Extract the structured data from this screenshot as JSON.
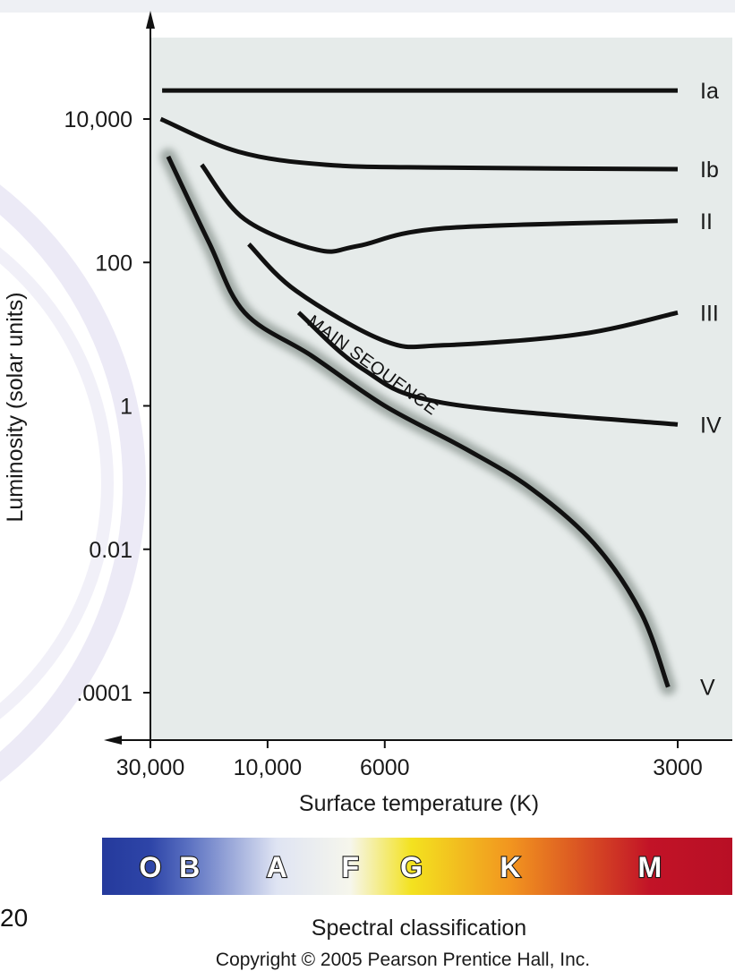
{
  "chart_data": {
    "type": "line",
    "title": "",
    "xlabel": "Surface temperature (K)",
    "ylabel": "Luminosity (solar units)",
    "x_scale": "reciprocal",
    "y_scale": "log",
    "x_direction": "decreasing",
    "xlim": [
      40000,
      2750
    ],
    "ylim": [
      5e-05,
      100000
    ],
    "x_ticks": [
      {
        "value": 30000,
        "label": "30,000"
      },
      {
        "value": 10000,
        "label": "10,000"
      },
      {
        "value": 6000,
        "label": "6000"
      },
      {
        "value": 3000,
        "label": "3000"
      }
    ],
    "y_ticks": [
      {
        "value": 10000,
        "label": "10,000"
      },
      {
        "value": 100,
        "label": "100"
      },
      {
        "value": 1,
        "label": "1"
      },
      {
        "value": 0.01,
        "label": "0.01"
      },
      {
        "value": 0.0001,
        "label": ".0001"
      }
    ],
    "grid": false,
    "legend": "none",
    "series": [
      {
        "name": "Ia",
        "x": [
          25000,
          3000
        ],
        "y": [
          25000,
          25000
        ]
      },
      {
        "name": "Ib",
        "x": [
          25500,
          12000,
          7500,
          5000,
          3000
        ],
        "y": [
          10000,
          3500,
          2300,
          2100,
          2000
        ]
      },
      {
        "name": "II",
        "x": [
          16000,
          11500,
          7800,
          6600,
          5000,
          3000
        ],
        "y": [
          2300,
          400,
          150,
          170,
          300,
          380
        ]
      },
      {
        "name": "III",
        "x": [
          11200,
          8600,
          6000,
          5000,
          3600,
          3000
        ],
        "y": [
          180,
          40,
          8,
          7,
          10,
          20
        ]
      },
      {
        "name": "IV",
        "x": [
          8500,
          6500,
          5000,
          3000
        ],
        "y": [
          20,
          3.3,
          1.1,
          0.55
        ]
      },
      {
        "name": "V",
        "x": [
          23000,
          15000,
          11500,
          8000,
          6000,
          4700,
          4000,
          3500,
          3200,
          3050
        ],
        "y": [
          3000,
          190,
          20,
          5,
          1,
          0.25,
          0.07,
          0.012,
          0.0013,
          0.00012
        ]
      }
    ],
    "annotations": [
      {
        "text": "MAIN SEQUENCE",
        "x": 8500,
        "y": 2
      }
    ],
    "spectral_classes": [
      {
        "letter": "O",
        "color": "#2e45a8",
        "x": 30000
      },
      {
        "letter": "B",
        "color": "#5c72c2",
        "x": 18000
      },
      {
        "letter": "A",
        "color": "#dfe4f3",
        "x": 9500
      },
      {
        "letter": "F",
        "color": "#f6f6ec",
        "x": 6800
      },
      {
        "letter": "G",
        "color": "#f3e21f",
        "x": 5500
      },
      {
        "letter": "K",
        "color": "#f2951f",
        "x": 4200
      },
      {
        "letter": "M",
        "color": "#c21327",
        "x": 3150
      }
    ],
    "colorbar_label": "Spectral classification"
  },
  "copyright": "Copyright © 2005 Pearson Prentice Hall, Inc.",
  "side_fragment": "20",
  "colors": {
    "plot_background": "#e6ebea",
    "line": "#111111",
    "main_sequence_glow": "#8a9590"
  }
}
